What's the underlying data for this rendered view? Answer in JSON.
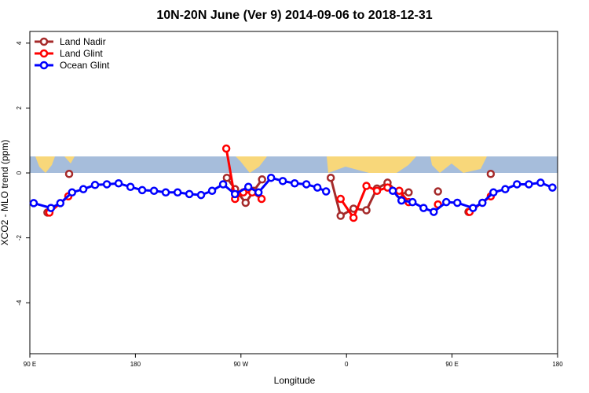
{
  "chart_data": {
    "type": "line",
    "title": "10N-20N June (Ver 9)   2014-09-06 to 2018-12-31",
    "x_label": "Longitude",
    "y_label": "XCO2 - MLO trend (ppm)",
    "xlim": [
      90,
      540
    ],
    "ylim": [
      -5.57,
      4.36
    ],
    "xticks": [
      {
        "value": 90,
        "label": "90 E"
      },
      {
        "value": 180,
        "label": "180"
      },
      {
        "value": 270,
        "label": "90 W"
      },
      {
        "value": 360,
        "label": "0"
      },
      {
        "value": 450,
        "label": "90 E"
      },
      {
        "value": 540,
        "label": "180"
      }
    ],
    "yticks": [
      -4,
      -2,
      0,
      2,
      4
    ],
    "legend": "top-left",
    "series": [
      {
        "name": "Land Nadir",
        "color": "#a52a2a",
        "x": [
          105,
          null,
          123.5,
          null,
          258,
          265,
          274,
          281,
          288,
          null,
          346.6,
          355,
          366,
          377,
          386,
          395,
          405,
          413,
          null,
          438,
          null,
          464,
          null,
          483
        ],
        "values": [
          -1.22,
          null,
          -0.03,
          null,
          -0.15,
          -0.5,
          -0.92,
          -0.55,
          -0.2,
          null,
          -0.15,
          -1.32,
          -1.1,
          -1.15,
          -0.48,
          -0.3,
          -0.65,
          -0.6,
          null,
          -0.57,
          null,
          -1.2,
          null,
          -0.03
        ]
      },
      {
        "name": "Land Glint",
        "color": "#ff0000",
        "x": [
          106.7,
          122.8,
          null,
          257.5,
          265,
          272,
          279.6,
          287.6,
          null,
          355,
          366,
          377,
          386,
          395,
          405,
          413,
          null,
          438,
          null,
          465,
          483
        ],
        "values": [
          -1.22,
          -0.72,
          null,
          0.75,
          -0.8,
          -0.6,
          -0.6,
          -0.8,
          null,
          -0.8,
          -1.38,
          -0.4,
          -0.55,
          -0.45,
          -0.55,
          -0.9,
          null,
          -0.97,
          null,
          -1.2,
          -0.72
        ]
      },
      {
        "name": "Ocean Glint",
        "color": "#0000ff",
        "x": [
          93.3,
          108,
          116,
          126,
          135.6,
          145.6,
          155.7,
          165.7,
          175.8,
          185.8,
          195.9,
          205.9,
          216,
          226,
          236,
          245.4,
          254.8,
          264.9,
          276.3,
          285,
          295.7,
          305.7,
          315.8,
          325.8,
          335.2,
          342.6,
          null,
          399.5,
          406.9,
          416.3,
          425.7,
          434.4,
          445.1,
          454.5,
          467.9,
          475.9,
          485.3,
          495.4,
          505.4,
          515.5,
          525.5,
          535.6
        ],
        "values": [
          -0.93,
          -1.08,
          -0.93,
          -0.6,
          -0.5,
          -0.37,
          -0.35,
          -0.32,
          -0.43,
          -0.53,
          -0.55,
          -0.6,
          -0.6,
          -0.65,
          -0.68,
          -0.55,
          -0.35,
          -0.65,
          -0.43,
          -0.6,
          -0.15,
          -0.25,
          -0.32,
          -0.35,
          -0.45,
          -0.57,
          null,
          -0.55,
          -0.85,
          -0.9,
          -1.08,
          -1.2,
          -0.9,
          -0.92,
          -1.08,
          -0.92,
          -0.6,
          -0.5,
          -0.35,
          -0.35,
          -0.3,
          -0.45
        ]
      }
    ]
  }
}
